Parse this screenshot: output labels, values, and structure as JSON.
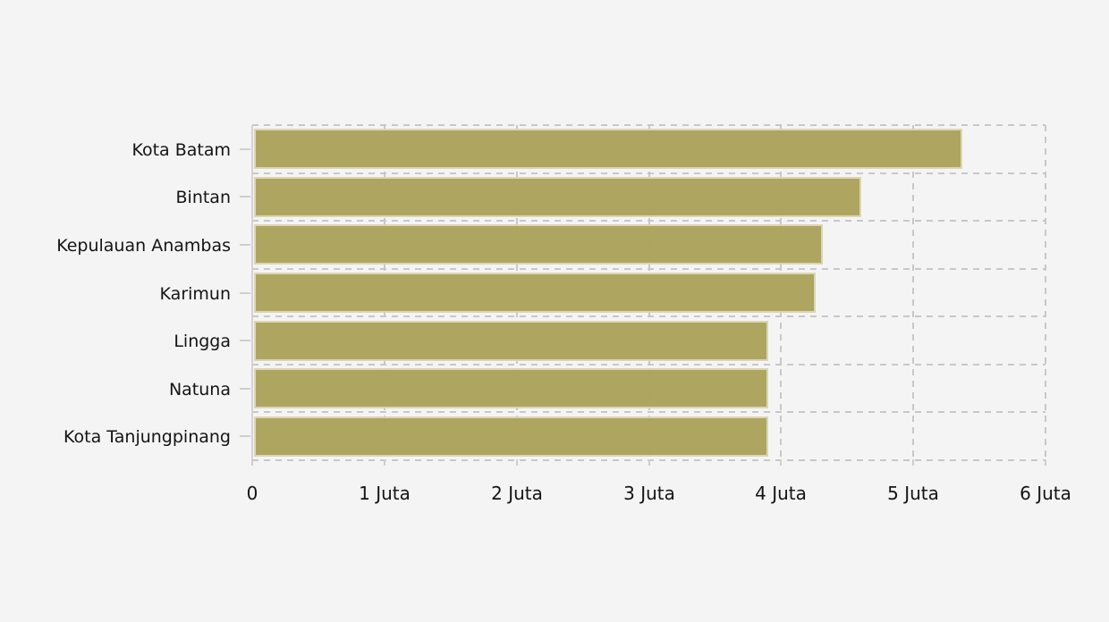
{
  "page": {
    "background_color": "#f5f4f5",
    "text_color": "#141414"
  },
  "chart_data": {
    "type": "bar",
    "orientation": "horizontal",
    "title": "",
    "xlabel": "",
    "ylabel": "",
    "unit": "Juta",
    "categories": [
      "Kota Batam",
      "Bintan",
      "Kepulauan Anambas",
      "Karimun",
      "Lingga",
      "Natuna",
      "Kota Tanjungpinang"
    ],
    "values": [
      5.36,
      4.59,
      4.3,
      4.25,
      3.89,
      3.89,
      3.89
    ],
    "xlim": [
      0,
      6
    ],
    "x_tick_values": [
      0,
      1,
      2,
      3,
      4,
      5,
      6
    ],
    "x_tick_labels": [
      "0",
      "1 Juta",
      "2 Juta",
      "3 Juta",
      "4 Juta",
      "5 Juta",
      "6 Juta"
    ],
    "grid": "dashed",
    "legend": "none",
    "bar_color": "#aca35a",
    "grid_color": "#c9c8c9"
  }
}
